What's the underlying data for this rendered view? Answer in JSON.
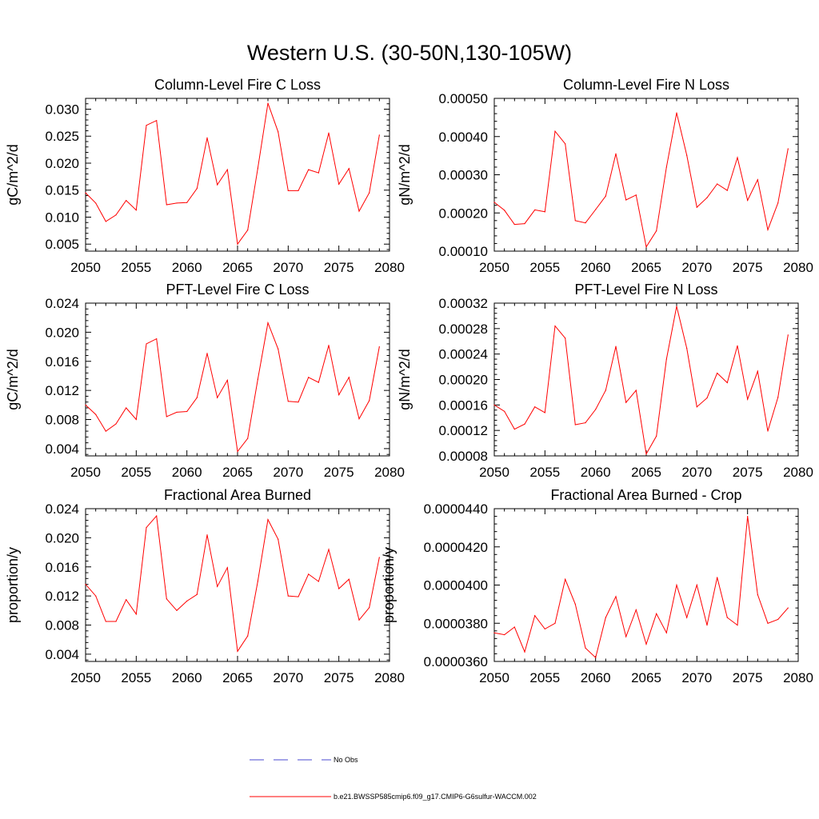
{
  "figure": {
    "title": "Western U.S. (30-50N,130-105W)"
  },
  "legend": {
    "placement": "bottom-center",
    "entries": [
      {
        "label": "No Obs",
        "color": "#4a4ad0",
        "style": "dashed"
      },
      {
        "label": "b.e21.BWSSP585cmip6.f09_g17.CMIP6-G6sulfur-WACCM.002",
        "color": "#ff0000",
        "style": "solid"
      }
    ]
  },
  "chart_data": [
    {
      "type": "line",
      "title": "Column-Level Fire C Loss",
      "ylabel": "gC/m^2/d",
      "xlim": [
        2050,
        2080
      ],
      "ylim": [
        0.0037,
        0.032
      ],
      "xticks": [
        "2050",
        "2055",
        "2060",
        "2065",
        "2070",
        "2075",
        "2080"
      ],
      "yticks": [
        "0.005",
        "0.010",
        "0.015",
        "0.020",
        "0.025",
        "0.030"
      ],
      "series": [
        {
          "color": "#ff0000",
          "x": [
            2050,
            2051,
            2052,
            2053,
            2054,
            2055,
            2056,
            2057,
            2058,
            2059,
            2060,
            2061,
            2062,
            2063,
            2064,
            2065,
            2066,
            2067,
            2068,
            2069,
            2070,
            2071,
            2072,
            2073,
            2074,
            2075,
            2076,
            2077,
            2078,
            2079
          ],
          "values": [
            0.0145,
            0.0126,
            0.0092,
            0.0104,
            0.0131,
            0.0113,
            0.027,
            0.0279,
            0.0123,
            0.0126,
            0.0127,
            0.0153,
            0.0247,
            0.016,
            0.0188,
            0.005,
            0.0076,
            0.019,
            0.0311,
            0.0258,
            0.0149,
            0.0149,
            0.0188,
            0.0182,
            0.0256,
            0.0161,
            0.019,
            0.0111,
            0.0145,
            0.0252
          ]
        }
      ]
    },
    {
      "type": "line",
      "title": "Column-Level Fire N Loss",
      "ylabel": "gN/m^2/d",
      "xlim": [
        2050,
        2080
      ],
      "ylim": [
        0.0001,
        0.0005
      ],
      "xticks": [
        "2050",
        "2055",
        "2060",
        "2065",
        "2070",
        "2075",
        "2080"
      ],
      "yticks": [
        "0.00010",
        "0.00020",
        "0.00030",
        "0.00040",
        "0.00050"
      ],
      "series": [
        {
          "color": "#ff0000",
          "x": [
            2050,
            2051,
            2052,
            2053,
            2054,
            2055,
            2056,
            2057,
            2058,
            2059,
            2060,
            2061,
            2062,
            2063,
            2064,
            2065,
            2066,
            2067,
            2068,
            2069,
            2070,
            2071,
            2072,
            2073,
            2074,
            2075,
            2076,
            2077,
            2078,
            2079
          ],
          "values": [
            0.000228,
            0.000207,
            0.00017,
            0.000172,
            0.000208,
            0.000203,
            0.000414,
            0.000381,
            0.00018,
            0.000174,
            0.000209,
            0.000244,
            0.000355,
            0.000234,
            0.000247,
            0.000111,
            0.000153,
            0.00032,
            0.000462,
            0.000351,
            0.000215,
            0.00024,
            0.000276,
            0.000259,
            0.000345,
            0.000233,
            0.000287,
            0.000156,
            0.000226,
            0.000368
          ]
        }
      ]
    },
    {
      "type": "line",
      "title": "PFT-Level Fire C Loss",
      "ylabel": "gC/m^2/d",
      "xlim": [
        2050,
        2080
      ],
      "ylim": [
        0.003,
        0.024
      ],
      "xticks": [
        "2050",
        "2055",
        "2060",
        "2065",
        "2070",
        "2075",
        "2080"
      ],
      "yticks": [
        "0.004",
        "0.008",
        "0.012",
        "0.016",
        "0.020",
        "0.024"
      ],
      "series": [
        {
          "color": "#ff0000",
          "x": [
            2050,
            2051,
            2052,
            2053,
            2054,
            2055,
            2056,
            2057,
            2058,
            2059,
            2060,
            2061,
            2062,
            2063,
            2064,
            2065,
            2066,
            2067,
            2068,
            2069,
            2070,
            2071,
            2072,
            2073,
            2074,
            2075,
            2076,
            2077,
            2078,
            2079
          ],
          "values": [
            0.01,
            0.0087,
            0.0064,
            0.0074,
            0.0096,
            0.008,
            0.0184,
            0.0191,
            0.0084,
            0.009,
            0.0091,
            0.011,
            0.0171,
            0.011,
            0.0134,
            0.0036,
            0.0054,
            0.0135,
            0.0213,
            0.0177,
            0.0105,
            0.0104,
            0.0138,
            0.0131,
            0.0182,
            0.0114,
            0.0138,
            0.0081,
            0.0106,
            0.018
          ]
        }
      ]
    },
    {
      "type": "line",
      "title": "PFT-Level Fire N Loss",
      "ylabel": "gN/m^2/d",
      "xlim": [
        2050,
        2080
      ],
      "ylim": [
        8e-05,
        0.00032
      ],
      "xticks": [
        "2050",
        "2055",
        "2060",
        "2065",
        "2070",
        "2075",
        "2080"
      ],
      "yticks": [
        "0.00008",
        "0.00012",
        "0.00016",
        "0.00020",
        "0.00024",
        "0.00028",
        "0.00032"
      ],
      "series": [
        {
          "color": "#ff0000",
          "x": [
            2050,
            2051,
            2052,
            2053,
            2054,
            2055,
            2056,
            2057,
            2058,
            2059,
            2060,
            2061,
            2062,
            2063,
            2064,
            2065,
            2066,
            2067,
            2068,
            2069,
            2070,
            2071,
            2072,
            2073,
            2074,
            2075,
            2076,
            2077,
            2078,
            2079
          ],
          "values": [
            0.00016,
            0.00015,
            0.000122,
            0.00013,
            0.000157,
            0.000148,
            0.000284,
            0.000265,
            0.000129,
            0.000132,
            0.000153,
            0.000183,
            0.000252,
            0.000164,
            0.000183,
            8.3e-05,
            0.000111,
            0.000232,
            0.000315,
            0.000249,
            0.000157,
            0.000171,
            0.00021,
            0.000195,
            0.000253,
            0.000169,
            0.000213,
            0.000119,
            0.000172,
            0.00027
          ]
        }
      ]
    },
    {
      "type": "line",
      "title": "Fractional Area Burned",
      "ylabel": "proportion/y",
      "xlim": [
        2050,
        2080
      ],
      "ylim": [
        0.003,
        0.024
      ],
      "xticks": [
        "2050",
        "2055",
        "2060",
        "2065",
        "2070",
        "2075",
        "2080"
      ],
      "yticks": [
        "0.004",
        "0.008",
        "0.012",
        "0.016",
        "0.020",
        "0.024"
      ],
      "series": [
        {
          "color": "#ff0000",
          "x": [
            2050,
            2051,
            2052,
            2053,
            2054,
            2055,
            2056,
            2057,
            2058,
            2059,
            2060,
            2061,
            2062,
            2063,
            2064,
            2065,
            2066,
            2067,
            2068,
            2069,
            2070,
            2071,
            2072,
            2073,
            2074,
            2075,
            2076,
            2077,
            2078,
            2079
          ],
          "values": [
            0.0136,
            0.012,
            0.0085,
            0.0085,
            0.0115,
            0.0095,
            0.0214,
            0.023,
            0.0116,
            0.01,
            0.0113,
            0.0122,
            0.0204,
            0.0133,
            0.0159,
            0.0044,
            0.0065,
            0.014,
            0.0225,
            0.0198,
            0.012,
            0.0119,
            0.015,
            0.014,
            0.0184,
            0.013,
            0.0143,
            0.0087,
            0.0104,
            0.0173
          ]
        }
      ]
    },
    {
      "type": "line",
      "title": "Fractional Area Burned - Crop",
      "ylabel": "proportion/y",
      "xlim": [
        2050,
        2080
      ],
      "ylim": [
        3.6e-05,
        4.4e-05
      ],
      "xticks": [
        "2050",
        "2055",
        "2060",
        "2065",
        "2070",
        "2075",
        "2080"
      ],
      "yticks": [
        "0.0000360",
        "0.0000380",
        "0.0000400",
        "0.0000420",
        "0.0000440"
      ],
      "series": [
        {
          "color": "#ff0000",
          "x": [
            2050,
            2051,
            2052,
            2053,
            2054,
            2055,
            2056,
            2057,
            2058,
            2059,
            2060,
            2061,
            2062,
            2063,
            2064,
            2065,
            2066,
            2067,
            2068,
            2069,
            2070,
            2071,
            2072,
            2073,
            2074,
            2075,
            2076,
            2077,
            2078,
            2079
          ],
          "values": [
            3.75e-05,
            3.74e-05,
            3.78e-05,
            3.65e-05,
            3.84e-05,
            3.77e-05,
            3.8e-05,
            4.03e-05,
            3.9e-05,
            3.67e-05,
            3.62e-05,
            3.83e-05,
            3.94e-05,
            3.73e-05,
            3.87e-05,
            3.69e-05,
            3.85e-05,
            3.75e-05,
            4e-05,
            3.83e-05,
            4e-05,
            3.79e-05,
            4.04e-05,
            3.83e-05,
            3.79e-05,
            4.36e-05,
            3.95e-05,
            3.8e-05,
            3.82e-05,
            3.88e-05
          ]
        }
      ]
    }
  ]
}
